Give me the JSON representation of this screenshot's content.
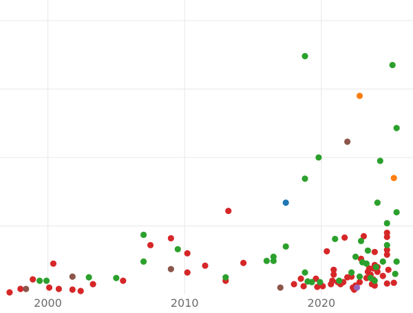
{
  "chart_data": {
    "type": "scatter",
    "title": "",
    "xlabel": "",
    "ylabel": "",
    "xlim": [
      1996.5,
      2026.7
    ],
    "ylim": [
      0,
      4.3
    ],
    "x_ticks": [
      2000,
      2010,
      2020
    ],
    "x_tick_labels": [
      "2000",
      "2010",
      "2020"
    ],
    "y_gridlines": [
      1,
      2,
      3,
      4
    ],
    "y_tick_labels_shown": false,
    "grid": true,
    "legend": "none",
    "colors": {
      "red": "#d62728",
      "green": "#2ca02c",
      "brown": "#8c564b",
      "orange": "#ff7f0e",
      "blue": "#1f77b4",
      "purple": "#9467bd",
      "background": "#ffffff",
      "grid": "#ebebeb",
      "tick_text": "#6b6b6b"
    },
    "series": [
      {
        "color": "#d62728",
        "points": [
          [
            1997.2,
            0.03
          ],
          [
            1998.0,
            0.08
          ],
          [
            1998.9,
            0.22
          ],
          [
            2000.4,
            0.45
          ],
          [
            2000.1,
            0.1
          ],
          [
            2000.8,
            0.08
          ],
          [
            2001.8,
            0.07
          ],
          [
            2002.4,
            0.05
          ],
          [
            2003.3,
            0.15
          ],
          [
            2005.5,
            0.2
          ],
          [
            2007.5,
            0.72
          ],
          [
            2009.0,
            0.82
          ],
          [
            2010.2,
            0.6
          ],
          [
            2010.2,
            0.32
          ],
          [
            2011.5,
            0.42
          ],
          [
            2013.0,
            0.2
          ],
          [
            2013.2,
            1.22
          ],
          [
            2014.3,
            0.46
          ],
          [
            2018.0,
            0.15
          ],
          [
            2018.5,
            0.23
          ],
          [
            2018.7,
            0.12
          ],
          [
            2019.6,
            0.23
          ],
          [
            2019.7,
            0.11
          ],
          [
            2020.1,
            0.12
          ],
          [
            2020.4,
            0.63
          ],
          [
            2020.7,
            0.15
          ],
          [
            2020.8,
            0.2
          ],
          [
            2020.9,
            0.36
          ],
          [
            2020.9,
            0.29
          ],
          [
            2021.2,
            0.18
          ],
          [
            2021.4,
            0.15
          ],
          [
            2021.6,
            0.18
          ],
          [
            2021.9,
            0.25
          ],
          [
            2021.7,
            0.83
          ],
          [
            2022.2,
            0.26
          ],
          [
            2022.3,
            0.1
          ],
          [
            2022.4,
            0.07
          ],
          [
            2022.5,
            0.13
          ],
          [
            2022.8,
            0.18
          ],
          [
            2022.9,
            0.52
          ],
          [
            2023.1,
            0.85
          ],
          [
            2023.3,
            0.24
          ],
          [
            2023.4,
            0.33
          ],
          [
            2023.5,
            0.38
          ],
          [
            2023.6,
            0.29
          ],
          [
            2023.7,
            0.15
          ],
          [
            2023.8,
            0.22
          ],
          [
            2023.9,
            0.13
          ],
          [
            2023.8,
            0.38
          ],
          [
            2023.9,
            0.43
          ],
          [
            2024.1,
            0.33
          ],
          [
            2024.1,
            0.4
          ],
          [
            2024.5,
            0.27
          ],
          [
            2024.8,
            0.16
          ],
          [
            2024.8,
            0.58
          ],
          [
            2024.8,
            0.65
          ],
          [
            2024.8,
            0.84
          ],
          [
            2024.8,
            0.9
          ],
          [
            2024.9,
            0.36
          ],
          [
            2025.3,
            0.17
          ],
          [
            2023.9,
            0.62
          ]
        ]
      },
      {
        "color": "#2ca02c",
        "points": [
          [
            1999.4,
            0.2
          ],
          [
            1999.9,
            0.2
          ],
          [
            2003.0,
            0.25
          ],
          [
            2005.0,
            0.24
          ],
          [
            2007.0,
            0.48
          ],
          [
            2007.0,
            0.87
          ],
          [
            2009.5,
            0.66
          ],
          [
            2013.0,
            0.25
          ],
          [
            2016.0,
            0.49
          ],
          [
            2016.5,
            0.49
          ],
          [
            2016.5,
            0.55
          ],
          [
            2017.4,
            0.7
          ],
          [
            2018.8,
            0.32
          ],
          [
            2019.0,
            0.19
          ],
          [
            2019.3,
            0.18
          ],
          [
            2019.9,
            0.18
          ],
          [
            2018.8,
            1.69
          ],
          [
            2019.8,
            2.0
          ],
          [
            2018.8,
            3.48
          ],
          [
            2021.0,
            0.81
          ],
          [
            2021.3,
            0.2
          ],
          [
            2022.2,
            0.32
          ],
          [
            2022.5,
            0.55
          ],
          [
            2022.8,
            0.26
          ],
          [
            2022.9,
            0.78
          ],
          [
            2023.0,
            0.47
          ],
          [
            2023.3,
            0.45
          ],
          [
            2023.4,
            0.64
          ],
          [
            2023.6,
            0.24
          ],
          [
            2023.9,
            0.2
          ],
          [
            2024.0,
            0.4
          ],
          [
            2024.1,
            1.34
          ],
          [
            2024.3,
            1.95
          ],
          [
            2024.5,
            0.48
          ],
          [
            2024.8,
            0.72
          ],
          [
            2024.8,
            1.04
          ],
          [
            2025.2,
            3.35
          ],
          [
            2025.4,
            0.3
          ],
          [
            2025.5,
            0.48
          ],
          [
            2025.5,
            1.2
          ],
          [
            2025.5,
            2.43
          ]
        ]
      },
      {
        "color": "#8c564b",
        "points": [
          [
            1998.4,
            0.08
          ],
          [
            2001.8,
            0.26
          ],
          [
            2009.0,
            0.37
          ],
          [
            2017.0,
            0.1
          ],
          [
            2021.9,
            2.23
          ]
        ]
      },
      {
        "color": "#ff7f0e",
        "points": [
          [
            2022.8,
            2.9
          ],
          [
            2025.3,
            1.7
          ]
        ]
      },
      {
        "color": "#1f77b4",
        "points": [
          [
            2017.4,
            1.34
          ]
        ]
      },
      {
        "color": "#9467bd",
        "points": [
          [
            2022.6,
            0.1
          ]
        ]
      }
    ]
  }
}
